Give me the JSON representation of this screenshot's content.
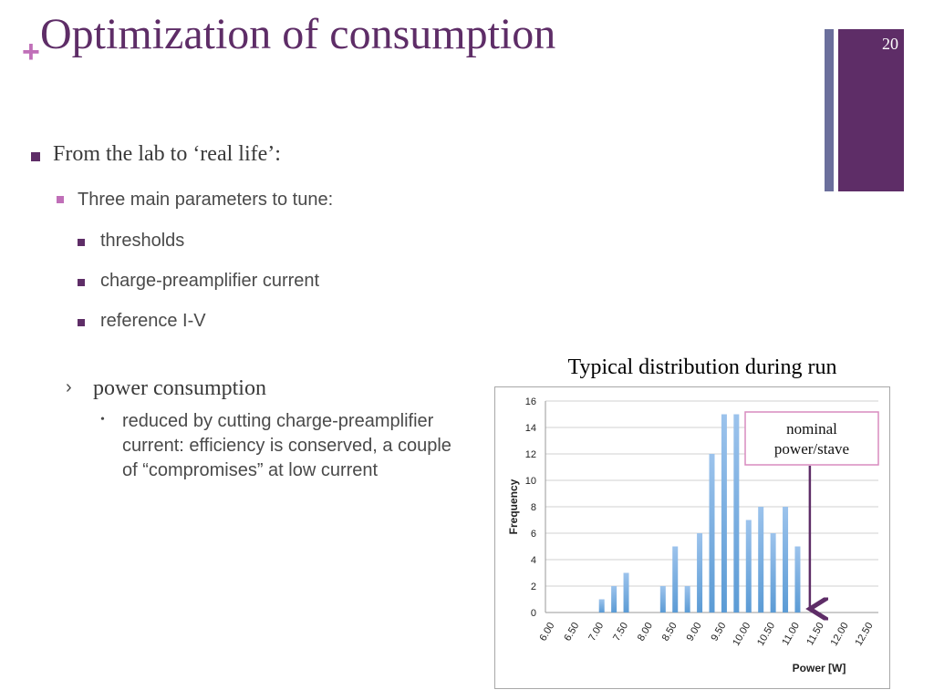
{
  "slide": {
    "plus_symbol": "+",
    "title": "Optimization of consumption",
    "page_number": "20"
  },
  "bullets": {
    "level1": "From the lab to ‘real life’:",
    "level2": "Three main parameters to tune:",
    "items": [
      "thresholds",
      "charge-preamplifier current",
      "reference I-V"
    ],
    "chevron": "›",
    "power": "power consumption",
    "dot": "•",
    "power_detail": "reduced by cutting charge-preamplifier current: efficiency is conserved, a couple of “compromises” at low current"
  },
  "chart_caption": "Typical distribution during run",
  "chart_data": {
    "type": "bar",
    "categories": [
      "6.00",
      "6.50",
      "7.00",
      "7.50",
      "8.00",
      "8.50",
      "9.00",
      "9.50",
      "10.00",
      "10.50",
      "11.00",
      "11.50",
      "12.00",
      "12.50"
    ],
    "x": [
      6.0,
      6.25,
      6.5,
      6.75,
      7.0,
      7.25,
      7.5,
      7.75,
      8.0,
      8.25,
      8.5,
      8.75,
      9.0,
      9.25,
      9.5,
      9.75,
      10.0,
      10.25,
      10.5,
      10.75,
      11.0,
      11.25,
      11.5,
      11.75,
      12.0,
      12.25,
      12.5
    ],
    "values": [
      0,
      0,
      0,
      0,
      1,
      2,
      3,
      0,
      0,
      2,
      5,
      2,
      6,
      12,
      15,
      15,
      7,
      8,
      6,
      8,
      5,
      0,
      0,
      0,
      0,
      0,
      0
    ],
    "ylabel": "Frequency",
    "xlabel": "Power [W]",
    "ylim": [
      0,
      16
    ],
    "yticks": [
      "0",
      "2",
      "4",
      "6",
      "8",
      "10",
      "12",
      "14",
      "16"
    ],
    "grid": true,
    "bar_color": "#5b9bd5",
    "annotation": {
      "text_line1": "nominal",
      "text_line2": "power/stave",
      "target_x": 11.25,
      "arrow_color": "#5e2d67",
      "border_color": "#d98bbf"
    }
  },
  "colors": {
    "title": "#5e2d67",
    "accent_pink": "#c06fb8",
    "accent_blue_gray": "#6b6f9c",
    "text": "#3a3a3a"
  }
}
